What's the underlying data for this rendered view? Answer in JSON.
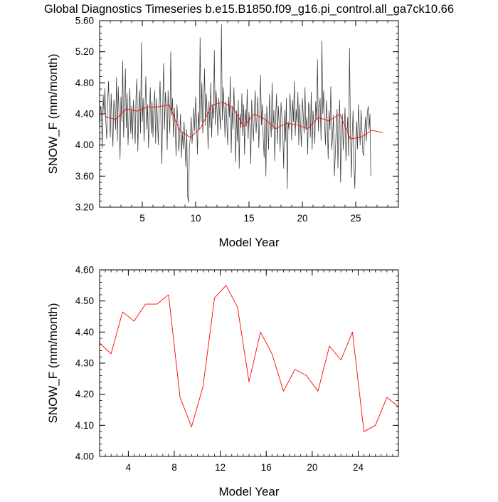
{
  "title": "Global Diagnostics Timeseries b.e15.B1850.f09_g16.pi_control.all_ga7ck10.66",
  "colors": {
    "monthly": "#3a3a3a",
    "annual": "#ff0000",
    "axis": "#000000"
  },
  "chart_data": [
    {
      "type": "line",
      "id": "top",
      "xlabel": "Model Year",
      "ylabel": "SNOW_F (mm/month)",
      "xlim": [
        1,
        29
      ],
      "ylim": [
        3.2,
        5.6
      ],
      "xticks": [
        5,
        10,
        15,
        20,
        25
      ],
      "yticks": [
        3.2,
        3.6,
        4.0,
        4.4,
        4.8,
        5.2,
        5.6
      ],
      "ytick_labels": [
        "3.20",
        "3.60",
        "4.00",
        "4.40",
        "4.80",
        "5.20",
        "5.60"
      ],
      "series": [
        {
          "name": "monthly",
          "x_start": 1.0,
          "x_step": 0.0833333,
          "values": [
            4.16,
            4.5,
            4.43,
            3.96,
            4.65,
            4.4,
            4.73,
            4.3,
            4.08,
            4.52,
            4.82,
            4.4,
            4.1,
            4.66,
            4.28,
            3.98,
            4.58,
            4.45,
            4.2,
            4.87,
            4.05,
            4.75,
            4.35,
            3.82,
            4.62,
            4.3,
            5.08,
            4.1,
            4.48,
            4.98,
            4.22,
            4.66,
            4.0,
            4.38,
            4.73,
            4.15,
            4.5,
            4.08,
            4.58,
            4.3,
            4.02,
            4.64,
            4.85,
            3.92,
            4.45,
            4.7,
            4.15,
            5.32,
            4.3,
            4.6,
            4.05,
            4.44,
            4.88,
            4.2,
            4.52,
            3.96,
            4.4,
            4.74,
            4.15,
            4.56,
            4.1,
            4.48,
            4.7,
            4.02,
            4.6,
            4.34,
            4.0,
            4.5,
            4.82,
            4.28,
            3.76,
            4.52,
            5.05,
            4.2,
            4.68,
            4.45,
            3.94,
            4.7,
            4.4,
            4.15,
            5.2,
            4.38,
            4.6,
            4.1,
            4.48,
            4.24,
            3.86,
            4.52,
            4.3,
            3.92,
            4.1,
            4.4,
            3.84,
            4.16,
            3.95,
            4.3,
            4.0,
            3.72,
            4.2,
            3.34,
            3.26,
            3.96,
            4.1,
            4.36,
            4.02,
            4.22,
            4.48,
            4.18,
            4.62,
            4.35,
            3.88,
            4.42,
            4.2,
            5.38,
            4.3,
            4.8,
            4.15,
            4.5,
            4.98,
            4.25,
            4.66,
            4.4,
            3.95,
            4.56,
            4.22,
            4.8,
            4.1,
            4.52,
            4.34,
            5.22,
            4.26,
            4.7,
            4.45,
            4.12,
            4.6,
            4.38,
            4.2,
            5.55,
            4.32,
            4.74,
            4.45,
            4.1,
            4.56,
            4.3,
            4.0,
            4.62,
            4.36,
            4.88,
            3.9,
            4.5,
            4.2,
            4.74,
            4.35,
            3.78,
            4.44,
            4.05,
            4.58,
            3.7,
            4.4,
            4.22,
            4.66,
            4.12,
            4.52,
            3.88,
            4.46,
            4.24,
            4.72,
            4.08,
            4.42,
            4.24,
            3.76,
            4.58,
            4.3,
            4.05,
            4.44,
            4.7,
            4.15,
            4.38,
            4.62,
            3.96,
            4.3,
            4.9,
            4.26,
            4.52,
            4.08,
            3.84,
            4.4,
            3.6,
            4.5,
            4.26,
            3.94,
            4.65,
            4.3,
            4.1,
            4.8,
            4.2,
            4.45,
            3.8,
            4.38,
            4.66,
            4.02,
            4.5,
            4.28,
            3.92,
            4.55,
            4.36,
            4.15,
            3.7,
            4.44,
            4.05,
            4.6,
            3.44,
            4.3,
            4.2,
            4.66,
            4.45,
            4.06,
            4.58,
            4.3,
            4.82,
            4.12,
            4.46,
            4.28,
            4.68,
            4.0,
            4.52,
            4.22,
            3.98,
            4.6,
            4.38,
            4.15,
            4.74,
            4.2,
            4.36,
            3.88,
            4.55,
            4.46,
            4.1,
            4.68,
            3.94,
            4.44,
            4.28,
            4.02,
            4.56,
            4.32,
            5.1,
            4.18,
            4.48,
            4.6,
            4.06,
            5.34,
            4.4,
            4.7,
            4.28,
            4.0,
            4.58,
            4.3,
            3.82,
            4.44,
            4.2,
            4.75,
            3.94,
            4.12,
            4.38,
            3.6,
            3.86,
            4.2,
            4.46,
            3.7,
            4.3,
            4.58,
            3.52,
            4.1,
            4.4,
            3.94,
            4.2,
            4.48,
            3.8,
            4.1,
            4.36,
            3.86,
            5.25,
            4.3,
            3.58,
            4.1,
            4.44,
            3.74,
            3.44,
            4.02,
            4.3,
            3.95,
            4.52,
            4.24,
            4.0,
            4.45,
            4.2,
            3.9,
            3.86,
            4.15,
            4.36,
            4.05,
            4.4,
            4.5,
            4.2,
            4.4,
            3.6
          ]
        },
        {
          "name": "annual",
          "x": [
            1.5,
            2.5,
            3.5,
            4.5,
            5.5,
            6.5,
            7.5,
            8.5,
            9.5,
            10.5,
            11.5,
            12.5,
            13.5,
            14.5,
            15.5,
            16.5,
            17.5,
            18.5,
            19.5,
            20.5,
            21.5,
            22.5,
            23.5,
            24.5,
            25.5,
            26.5,
            27.5
          ],
          "values": [
            4.365,
            4.33,
            4.465,
            4.435,
            4.49,
            4.49,
            4.52,
            4.19,
            4.095,
            4.225,
            4.51,
            4.55,
            4.48,
            4.24,
            4.4,
            4.33,
            4.21,
            4.28,
            4.26,
            4.21,
            4.355,
            4.31,
            4.4,
            4.08,
            4.1,
            4.19,
            4.16
          ]
        }
      ]
    },
    {
      "type": "line",
      "id": "bottom",
      "xlabel": "Model Year",
      "ylabel": "SNOW_F (mm/month)",
      "xlim": [
        1.5,
        27.5
      ],
      "ylim": [
        4.0,
        4.6
      ],
      "xticks": [
        4,
        8,
        12,
        16,
        20,
        24
      ],
      "yticks": [
        4.0,
        4.1,
        4.2,
        4.3,
        4.4,
        4.5,
        4.6
      ],
      "ytick_labels": [
        "4.00",
        "4.10",
        "4.20",
        "4.30",
        "4.40",
        "4.50",
        "4.60"
      ],
      "series": [
        {
          "name": "annual",
          "x": [
            1.5,
            2.5,
            3.5,
            4.5,
            5.5,
            6.5,
            7.5,
            8.5,
            9.5,
            10.5,
            11.5,
            12.5,
            13.5,
            14.5,
            15.5,
            16.5,
            17.5,
            18.5,
            19.5,
            20.5,
            21.5,
            22.5,
            23.5,
            24.5,
            25.5,
            26.5,
            27.5
          ],
          "values": [
            4.365,
            4.33,
            4.465,
            4.435,
            4.49,
            4.49,
            4.52,
            4.19,
            4.095,
            4.225,
            4.51,
            4.55,
            4.48,
            4.24,
            4.4,
            4.33,
            4.21,
            4.28,
            4.26,
            4.21,
            4.355,
            4.31,
            4.4,
            4.08,
            4.1,
            4.19,
            4.16
          ]
        }
      ]
    }
  ]
}
